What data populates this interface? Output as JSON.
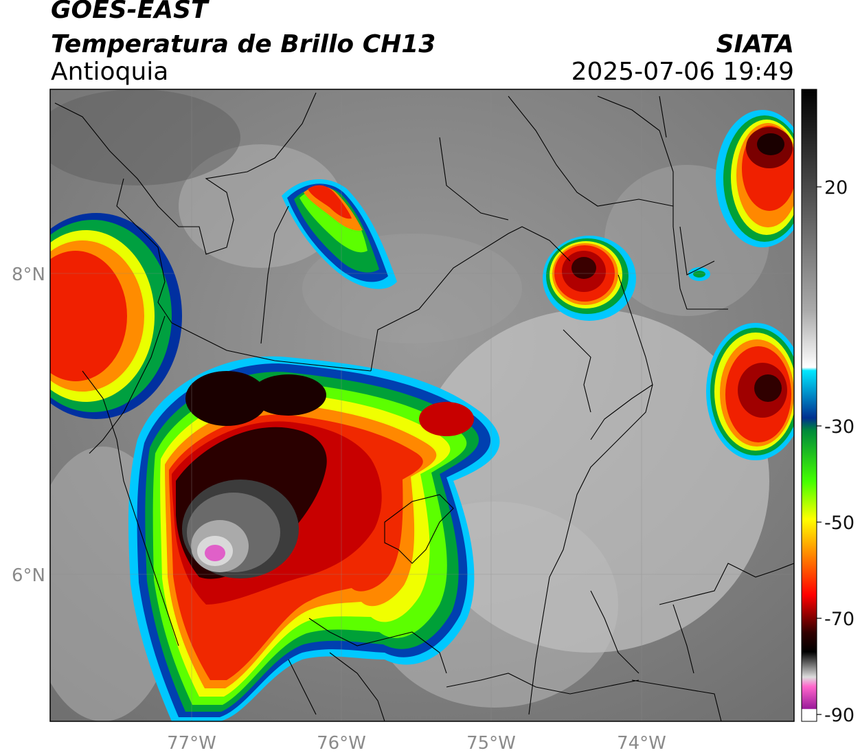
{
  "header": {
    "title": "GOES-EAST",
    "subtitle": "Temperatura de Brillo CH13",
    "region": "Antioquia",
    "organization": "SIATA",
    "datetime": "2025-07-06 19:49"
  },
  "axes": {
    "lon_ticks": [
      "77°W",
      "76°W",
      "75°W",
      "74°W"
    ],
    "lat_ticks": [
      "8°N",
      "6°N"
    ]
  },
  "colorbar": {
    "ticks": [
      "20",
      "-30",
      "-50",
      "-70",
      "-90"
    ],
    "range": [
      -90,
      35
    ]
  },
  "colors": {
    "cloud_top_cold": "#ff0000",
    "overshoot": "#e060c8",
    "background_gray": "#888888"
  }
}
